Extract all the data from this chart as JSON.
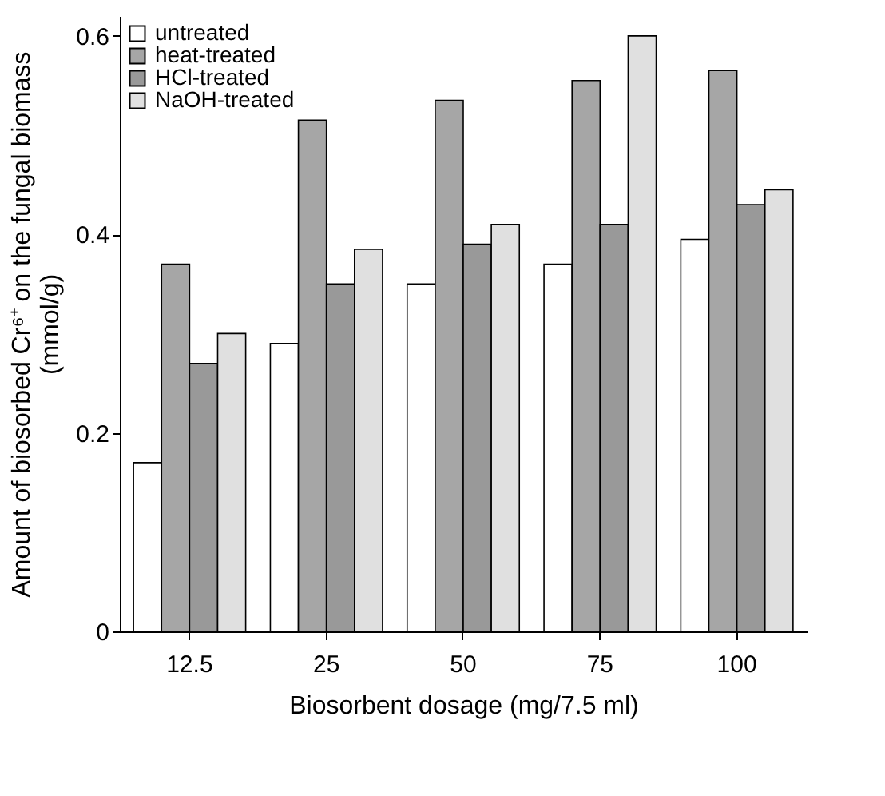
{
  "chart_data": {
    "type": "bar",
    "xlabel": "Biosorbent dosage (mg/7.5 ml)",
    "ylabel": "Amount of biosorbed Cr⁶⁺ on the fungal biomass (mmol/g)",
    "categories": [
      "12.5",
      "25",
      "50",
      "75",
      "100"
    ],
    "series": [
      {
        "name": "untreated",
        "color": "#ffffff",
        "values": [
          0.17,
          0.29,
          0.35,
          0.37,
          0.395
        ]
      },
      {
        "name": "heat-treated",
        "color": "#a6a6a6",
        "values": [
          0.37,
          0.515,
          0.535,
          0.555,
          0.565
        ]
      },
      {
        "name": "HCl-treated",
        "color": "#999999",
        "values": [
          0.27,
          0.35,
          0.39,
          0.41,
          0.43
        ]
      },
      {
        "name": "NaOH-treated",
        "color": "#e0e0e0",
        "values": [
          0.3,
          0.385,
          0.41,
          0.6,
          0.445
        ]
      }
    ],
    "ylim": [
      0,
      0.62
    ],
    "yticks": [
      0,
      0.2,
      0.4,
      0.6
    ],
    "grid": false,
    "legend": "top left"
  }
}
